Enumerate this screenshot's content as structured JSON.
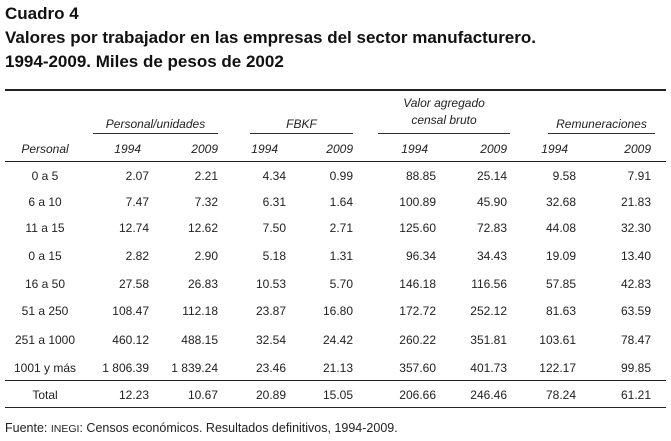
{
  "title": {
    "line1": "Cuadro 4",
    "line2": "Valores por trabajador en las empresas del sector manufacturero.",
    "line3": "1994-2009. Miles  de pesos de 2002"
  },
  "headers": {
    "stub": "Personal",
    "groups": [
      "Personal/unidades",
      "FBKF",
      "Valor agregado",
      "Remuneraciones"
    ],
    "group3_line2": "censal bruto",
    "years": [
      "1994",
      "2009",
      "1994",
      "2009",
      "1994",
      "2009",
      "1994",
      "2009"
    ]
  },
  "rows": [
    {
      "label": "0 a 5",
      "values": [
        "2.07",
        "2.21",
        "4.34",
        "0.99",
        "88.85",
        "25.14",
        "9.58",
        "7.91"
      ]
    },
    {
      "label": "6 a 10",
      "values": [
        "7.47",
        "7.32",
        "6.31",
        "1.64",
        "100.89",
        "45.90",
        "32.68",
        "21.83"
      ]
    },
    {
      "label": "11 a 15",
      "values": [
        "12.74",
        "12.62",
        "7.50",
        "2.71",
        "125.60",
        "72.83",
        "44.08",
        "32.30"
      ]
    },
    {
      "label": "0 a 15",
      "values": [
        "2.82",
        "2.90",
        "5.18",
        "1.31",
        "96.34",
        "34.43",
        "19.09",
        "13.40"
      ]
    },
    {
      "label": "16 a 50",
      "values": [
        "27.58",
        "26.83",
        "10.53",
        "5.70",
        "146.18",
        "116.56",
        "57.85",
        "42.83"
      ]
    },
    {
      "label": "51 a 250",
      "values": [
        "108.47",
        "112.18",
        "23.87",
        "16.80",
        "172.72",
        "252.12",
        "81.63",
        "63.59"
      ]
    },
    {
      "label": "251 a 1000",
      "values": [
        "460.12",
        "488.15",
        "32.54",
        "24.42",
        "260.22",
        "351.81",
        "103.61",
        "78.47"
      ]
    },
    {
      "label": "1001 y más",
      "values": [
        "1 806.39",
        "1 839.24",
        "23.46",
        "21.13",
        "357.60",
        "401.73",
        "122.17",
        "99.85"
      ]
    }
  ],
  "total": {
    "label": "Total",
    "values": [
      "12.23",
      "10.67",
      "20.89",
      "15.05",
      "206.66",
      "246.46",
      "78.24",
      "61.21"
    ]
  },
  "source": {
    "prefix": "Fuente: ",
    "org": "INEGI",
    "rest": ": Censos económicos. Resultados definitivos, 1994-2009."
  }
}
